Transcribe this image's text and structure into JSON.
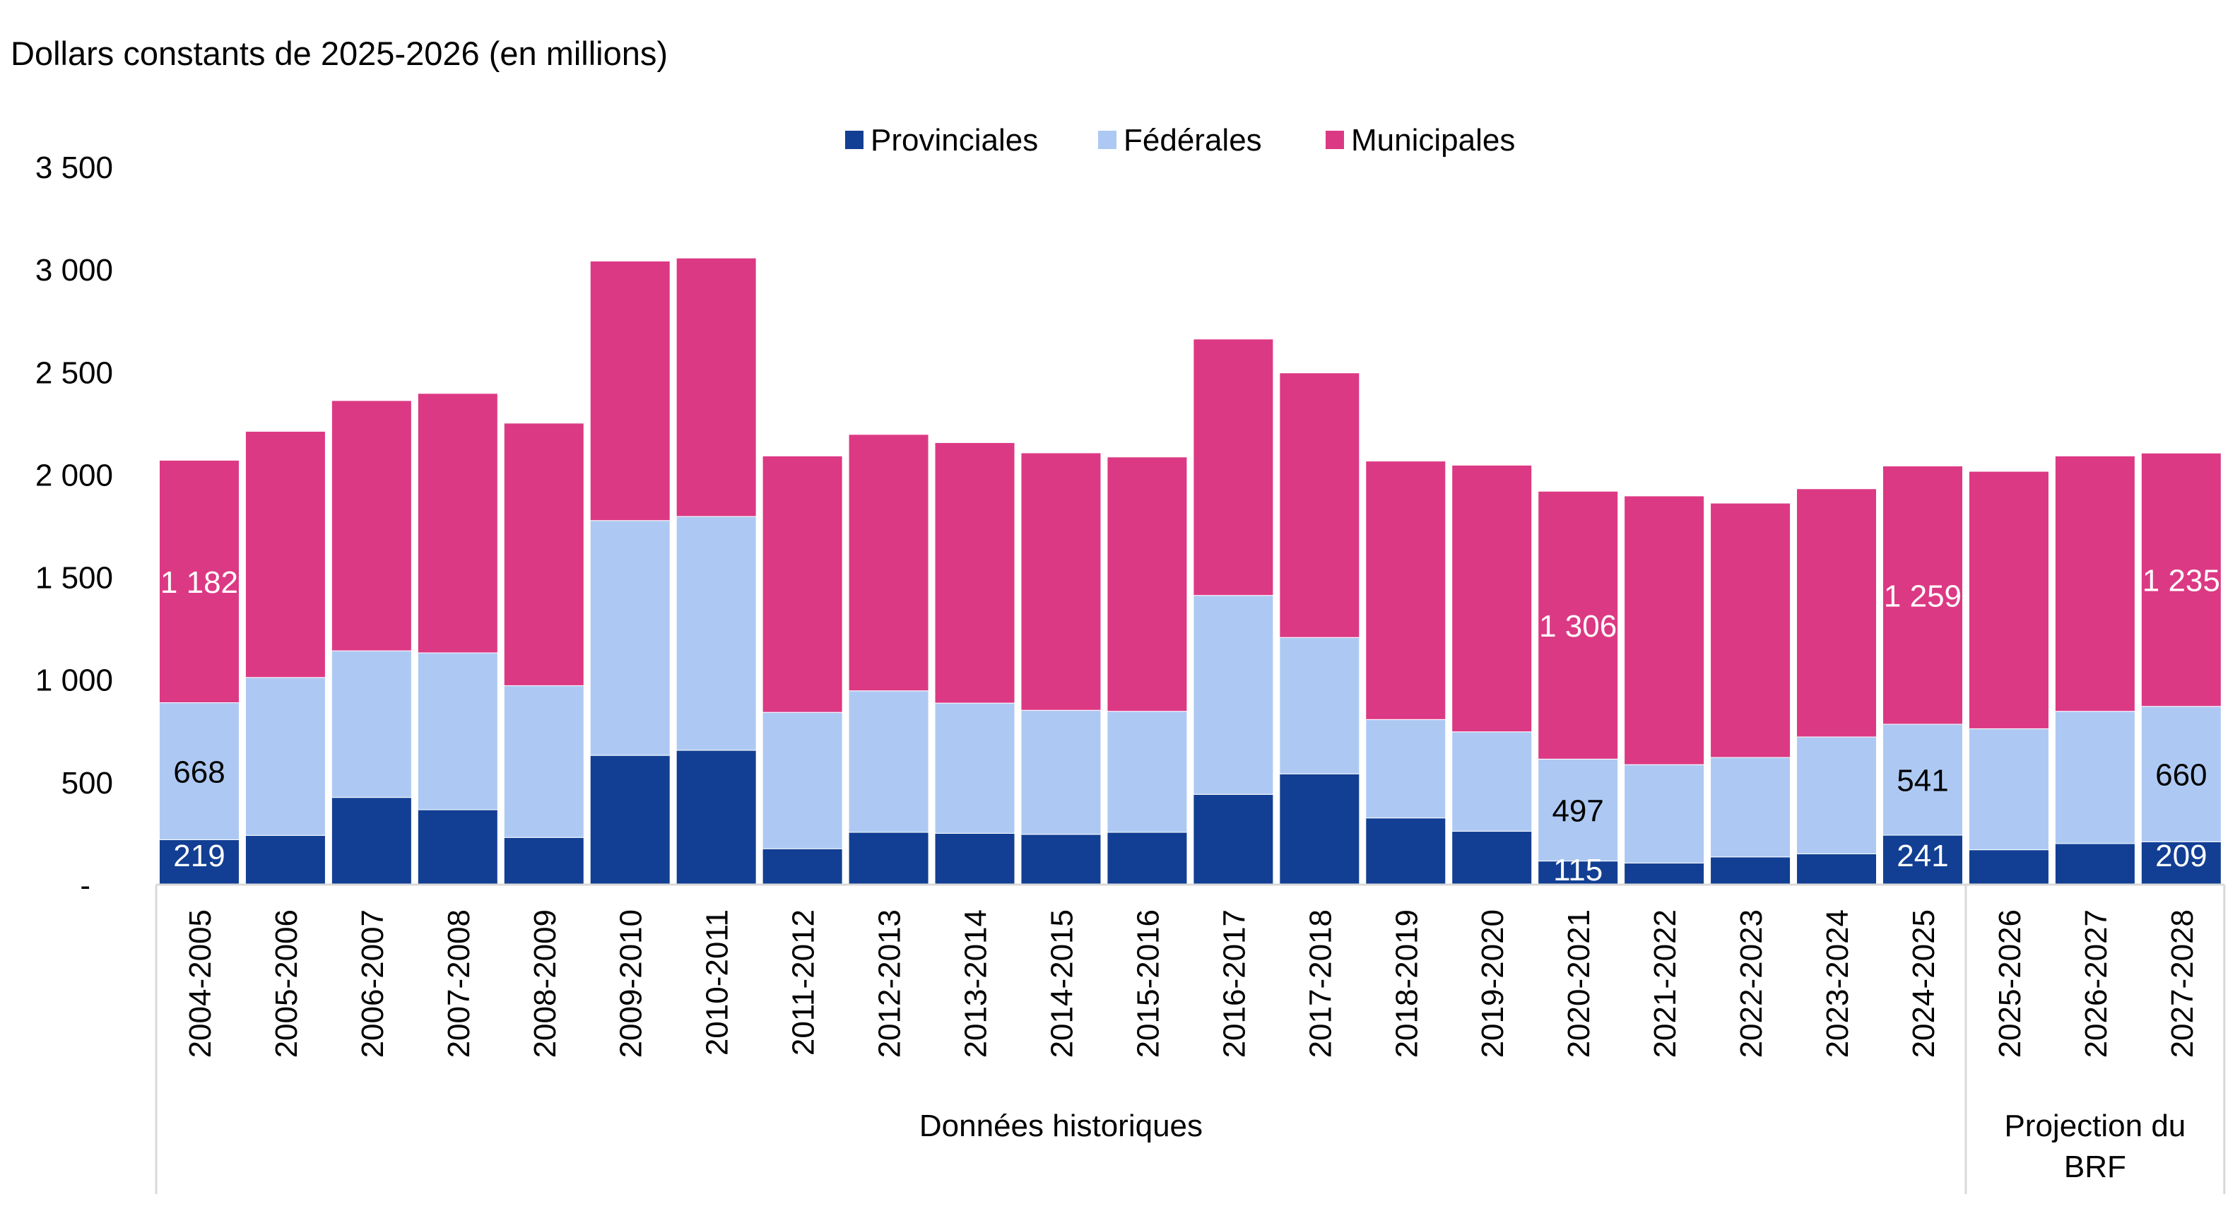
{
  "chart_data": {
    "type": "bar",
    "stacked": true,
    "title": "Dollars constants de 2025-2026 (en millions)",
    "categories": [
      "2004-2005",
      "2005-2006",
      "2006-2007",
      "2007-2008",
      "2008-2009",
      "2009-2010",
      "2010-2011",
      "2011-2012",
      "2012-2013",
      "2013-2014",
      "2014-2015",
      "2015-2016",
      "2016-2017",
      "2017-2018",
      "2018-2019",
      "2019-2020",
      "2020-2021",
      "2021-2022",
      "2022-2023",
      "2023-2024",
      "2024-2025",
      "2025-2026",
      "2026-2027",
      "2027-2028"
    ],
    "series": [
      {
        "name": "Provinciales",
        "color": "#123f93",
        "values": [
          219,
          240,
          425,
          365,
          230,
          630,
          655,
          175,
          255,
          250,
          245,
          255,
          440,
          540,
          325,
          260,
          115,
          105,
          135,
          150,
          241,
          170,
          200,
          209
        ]
      },
      {
        "name": "Fédérales",
        "color": "#adc9f3",
        "values": [
          668,
          770,
          715,
          765,
          740,
          1145,
          1140,
          665,
          690,
          635,
          605,
          590,
          970,
          665,
          480,
          485,
          497,
          480,
          485,
          570,
          541,
          590,
          645,
          660
        ]
      },
      {
        "name": "Municipales",
        "color": "#dc3984",
        "values": [
          1182,
          1200,
          1220,
          1265,
          1280,
          1265,
          1260,
          1250,
          1250,
          1270,
          1255,
          1240,
          1250,
          1290,
          1260,
          1300,
          1306,
          1310,
          1240,
          1210,
          1259,
          1255,
          1245,
          1235
        ]
      }
    ],
    "data_labels": [
      {
        "category_index": 0,
        "series_index": 0,
        "text": "219"
      },
      {
        "category_index": 0,
        "series_index": 1,
        "text": "668"
      },
      {
        "category_index": 0,
        "series_index": 2,
        "text": "1 182"
      },
      {
        "category_index": 16,
        "series_index": 0,
        "text": "115"
      },
      {
        "category_index": 16,
        "series_index": 1,
        "text": "497"
      },
      {
        "category_index": 16,
        "series_index": 2,
        "text": "1 306"
      },
      {
        "category_index": 20,
        "series_index": 0,
        "text": "241"
      },
      {
        "category_index": 20,
        "series_index": 1,
        "text": "541"
      },
      {
        "category_index": 20,
        "series_index": 2,
        "text": "1 259"
      },
      {
        "category_index": 23,
        "series_index": 0,
        "text": "209"
      },
      {
        "category_index": 23,
        "series_index": 1,
        "text": "660"
      },
      {
        "category_index": 23,
        "series_index": 2,
        "text": "1 235"
      }
    ],
    "yticks": [
      {
        "value": 0,
        "label": "-"
      },
      {
        "value": 500,
        "label": "500"
      },
      {
        "value": 1000,
        "label": "1 000"
      },
      {
        "value": 1500,
        "label": "1 500"
      },
      {
        "value": 2000,
        "label": "2 000"
      },
      {
        "value": 2500,
        "label": "2 500"
      },
      {
        "value": 3000,
        "label": "3 000"
      },
      {
        "value": 3500,
        "label": "3 500"
      }
    ],
    "ylim": [
      0,
      3500
    ],
    "grid": false,
    "legend_position": "top-center",
    "groups": [
      {
        "label": "Données historiques",
        "start_index": 0,
        "end_index": 20
      },
      {
        "label": "Projection du BRF",
        "start_index": 21,
        "end_index": 23
      }
    ]
  }
}
